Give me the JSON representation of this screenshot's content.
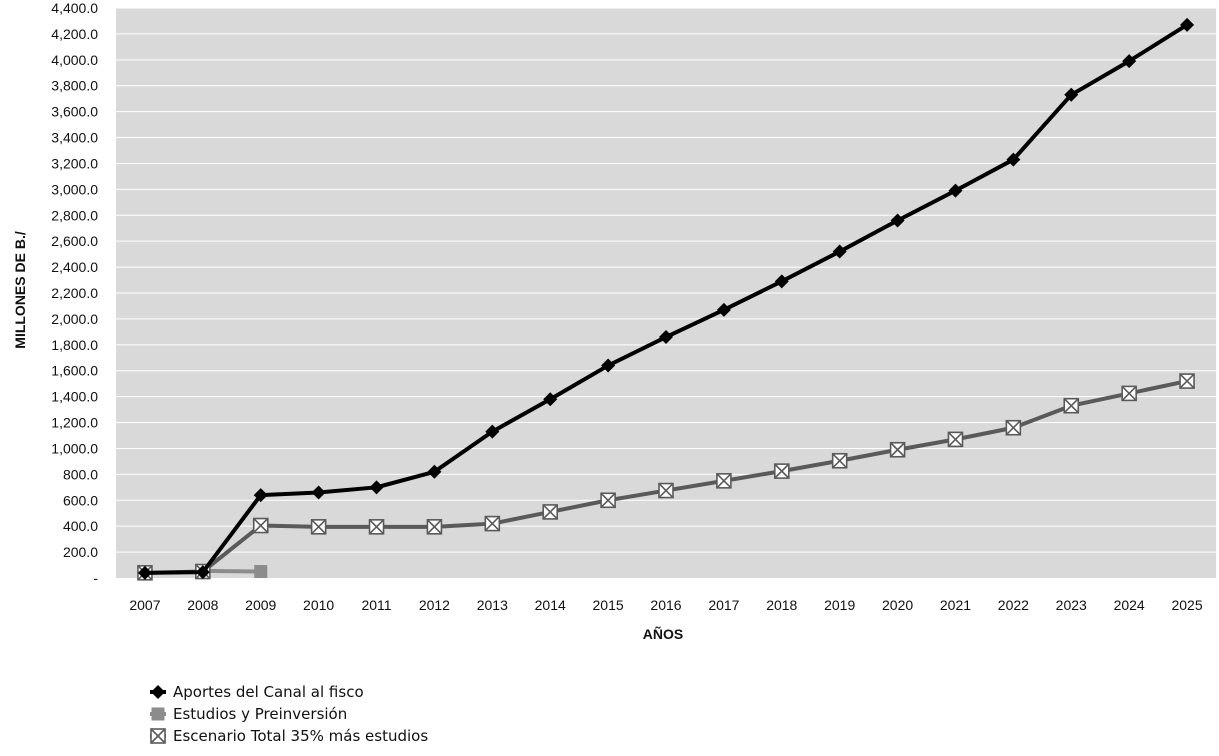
{
  "chart_data": {
    "type": "line",
    "xlabel": "AÑOS",
    "ylabel": "MILLONES DE B./",
    "ylim": [
      0,
      4400
    ],
    "yticks": [
      "-",
      "200.0",
      "400.0",
      "600.0",
      "800.0",
      "1,000.0",
      "1,200.0",
      "1,400.0",
      "1,600.0",
      "1,800.0",
      "2,000.0",
      "2,200.0",
      "2,400.0",
      "2,600.0",
      "2,800.0",
      "3,000.0",
      "3,200.0",
      "3,400.0",
      "3,600.0",
      "3,800.0",
      "4,000.0",
      "4,200.0",
      "4,400.0"
    ],
    "categories": [
      "2007",
      "2008",
      "2009",
      "2010",
      "2011",
      "2012",
      "2013",
      "2014",
      "2015",
      "2016",
      "2017",
      "2018",
      "2019",
      "2020",
      "2021",
      "2022",
      "2023",
      "2024",
      "2025"
    ],
    "grid": true,
    "legend_position": "bottom-left",
    "series": [
      {
        "name": "Aportes del Canal al fisco",
        "color": "#000000",
        "marker": "diamond",
        "values": [
          40,
          45,
          640,
          660,
          700,
          820,
          1130,
          1380,
          1640,
          1860,
          2070,
          2290,
          2520,
          2760,
          2990,
          3230,
          3730,
          3990,
          4270
        ]
      },
      {
        "name": "Estudios y Preinversión",
        "color": "#8c8c8c",
        "marker": "square",
        "values": [
          null,
          55,
          50,
          null,
          null,
          null,
          null,
          null,
          null,
          null,
          null,
          null,
          null,
          null,
          null,
          null,
          null,
          null,
          null
        ]
      },
      {
        "name": "Escenario Total 35% más estudios",
        "color": "#5a5a5a",
        "marker": "x-square",
        "values": [
          40,
          50,
          405,
          395,
          395,
          395,
          420,
          510,
          600,
          675,
          750,
          825,
          905,
          990,
          1070,
          1160,
          1330,
          1425,
          1520
        ]
      }
    ]
  }
}
